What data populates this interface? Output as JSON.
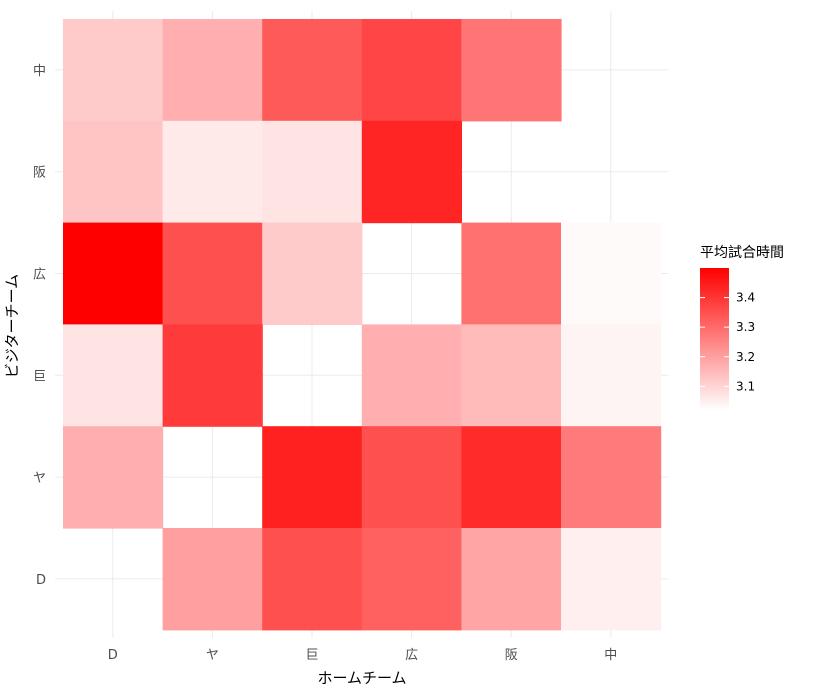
{
  "chart_data": {
    "type": "heatmap",
    "xlabel": "ホームチーム",
    "ylabel": "ビジターチーム",
    "x_categories": [
      "D",
      "ヤ",
      "巨",
      "広",
      "阪",
      "中"
    ],
    "y_categories_top_to_bottom": [
      "中",
      "阪",
      "広",
      "巨",
      "ヤ",
      "D"
    ],
    "values_top_to_bottom": [
      [
        3.12,
        3.17,
        3.33,
        3.37,
        3.28,
        null
      ],
      [
        3.13,
        3.06,
        3.07,
        3.43,
        null,
        null
      ],
      [
        3.5,
        3.35,
        3.12,
        null,
        3.29,
        3.03
      ],
      [
        3.07,
        3.39,
        null,
        3.17,
        3.15,
        3.04
      ],
      [
        3.17,
        null,
        3.44,
        3.35,
        3.42,
        3.27
      ],
      [
        null,
        3.2,
        3.35,
        3.32,
        3.19,
        3.05
      ]
    ],
    "legend": {
      "title": "平均試合時間",
      "ticks": [
        3.1,
        3.2,
        3.3,
        3.4
      ],
      "tick_labels": [
        "3.1",
        "3.2",
        "3.3",
        "3.4"
      ],
      "range": [
        3.02,
        3.5
      ],
      "placement": "right"
    },
    "color_low": "#ffffff",
    "color_high": "#ff0000",
    "grid": true
  }
}
